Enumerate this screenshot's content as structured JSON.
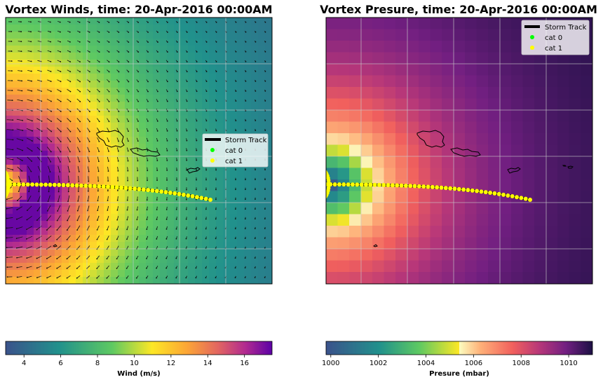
{
  "chart_data": [
    {
      "type": "heatmap",
      "title": "Vortex Winds, time: 20-Apr-2016 00:00AM",
      "colorbar": {
        "label": "Wind (m/s)",
        "min": 3,
        "max": 17.5,
        "ticks": [
          "4",
          "6",
          "8",
          "10",
          "12",
          "14",
          "16"
        ],
        "tick_values": [
          4,
          6,
          8,
          10,
          12,
          14,
          16
        ],
        "colormap": "viridis-plasma"
      },
      "overlay": "wind-vectors",
      "grid": true,
      "legend": {
        "placement": "center-right",
        "entries": [
          "Storm Track",
          "cat 0",
          "cat 1"
        ]
      }
    },
    {
      "type": "heatmap",
      "title": "Vortex Presure, time: 20-Apr-2016 00:00AM",
      "colorbar": {
        "label": "Presure (mbar)",
        "min": 999.8,
        "max": 1011,
        "ticks": [
          "1000",
          "1002",
          "1004",
          "1006",
          "1008",
          "1010"
        ],
        "tick_values": [
          1000,
          1002,
          1004,
          1006,
          1008,
          1010
        ],
        "colormap": "viridis-magma"
      },
      "grid": true,
      "legend": {
        "placement": "top-right",
        "entries": [
          "Storm Track",
          "cat 0",
          "cat 1"
        ]
      }
    }
  ],
  "legend_colors": {
    "track": "#000000",
    "cat0": "#00ff00",
    "cat1": "#ffff00"
  }
}
